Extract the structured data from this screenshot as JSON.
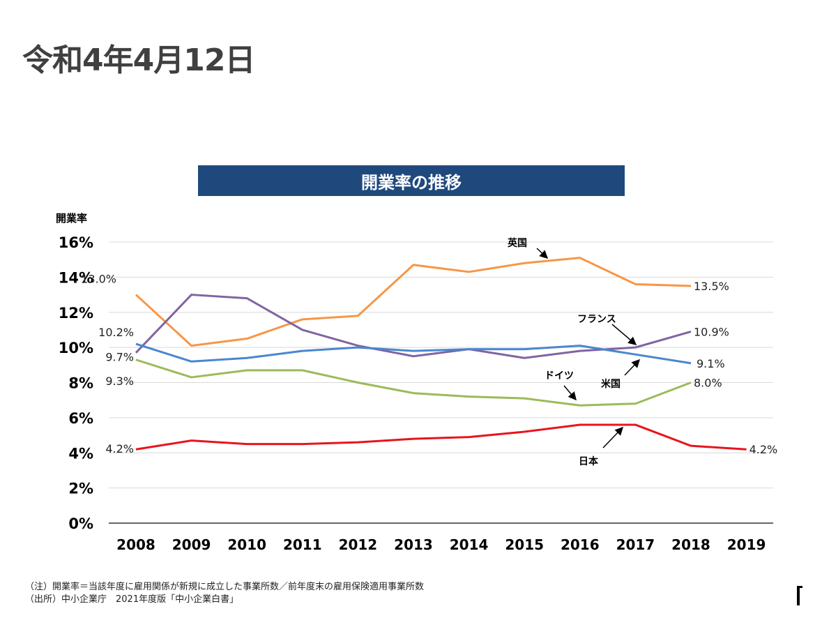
{
  "page": {
    "date_title": "令和4年4月12日",
    "notes": [
      "（注）開業率＝当該年度に雇用関係が新規に成立した事業所数／前年度末の雇用保険適用事業所数",
      "（出所）中小企業庁　2021年度版「中小企業白書」"
    ]
  },
  "chart_data": {
    "type": "line",
    "title": "開業率の推移",
    "ylabel": "開業率",
    "xlabel": "",
    "ylim": [
      0,
      16
    ],
    "yticks": [
      0,
      2,
      4,
      6,
      8,
      10,
      12,
      14,
      16
    ],
    "ytick_labels": [
      "0%",
      "2%",
      "4%",
      "6%",
      "8%",
      "10%",
      "12%",
      "14%",
      "16%"
    ],
    "x": [
      "2008",
      "2009",
      "2010",
      "2011",
      "2012",
      "2013",
      "2014",
      "2015",
      "2016",
      "2017",
      "2018",
      "2019"
    ],
    "grid": true,
    "legend": "none (inline labels with arrows)",
    "series": [
      {
        "name": "英国",
        "color": "#f79646",
        "values": [
          13.0,
          10.1,
          10.5,
          11.6,
          11.8,
          14.7,
          14.3,
          14.8,
          15.1,
          13.6,
          13.5,
          null
        ],
        "start_label": "13.0%",
        "end_label": "13.5%"
      },
      {
        "name": "フランス",
        "color": "#8064a2",
        "values": [
          9.7,
          13.0,
          12.8,
          11.0,
          10.1,
          9.5,
          9.9,
          9.4,
          9.8,
          10.0,
          10.9,
          null
        ],
        "start_label": "9.7%",
        "end_label": "10.9%"
      },
      {
        "name": "米国",
        "color": "#4a86d0",
        "values": [
          10.2,
          9.2,
          9.4,
          9.8,
          10.0,
          9.8,
          9.9,
          9.9,
          10.1,
          9.6,
          9.1,
          null
        ],
        "start_label": "10.2%",
        "end_label": "9.1%"
      },
      {
        "name": "ドイツ",
        "color": "#9bbb59",
        "values": [
          9.3,
          8.3,
          8.7,
          8.7,
          8.0,
          7.4,
          7.2,
          7.1,
          6.7,
          6.8,
          8.0,
          null
        ],
        "start_label": "9.3%",
        "end_label": "8.0%"
      },
      {
        "name": "日本",
        "color": "#e8141c",
        "values": [
          4.2,
          4.7,
          4.5,
          4.5,
          4.6,
          4.8,
          4.9,
          5.2,
          5.6,
          5.6,
          4.4,
          4.2
        ],
        "start_label": "4.2%",
        "end_label": "4.2%",
        "end_label_color": "#e8141c"
      }
    ],
    "annotations": [
      {
        "text": "英国",
        "points_to": {
          "series": "英国",
          "x": "2015"
        }
      },
      {
        "text": "フランス",
        "points_to": {
          "series": "フランス",
          "x": "2017"
        }
      },
      {
        "text": "米国",
        "points_to": {
          "series": "米国",
          "x": "2017"
        }
      },
      {
        "text": "ドイツ",
        "points_to": {
          "series": "ドイツ",
          "x": "2016"
        }
      },
      {
        "text": "日本",
        "points_to": {
          "series": "日本",
          "x": "2016"
        }
      }
    ]
  }
}
